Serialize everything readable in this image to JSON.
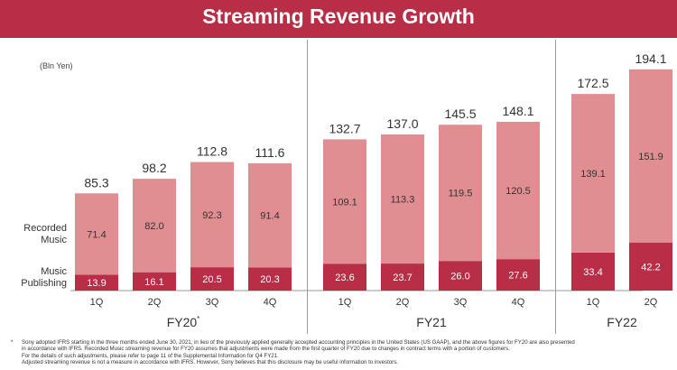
{
  "header": {
    "title": "Streaming Revenue Growth"
  },
  "chart_data": {
    "type": "bar",
    "stacked": true,
    "title": "Streaming Revenue Growth",
    "unit_label": "(Bln Yen)",
    "categories": [
      "1Q",
      "2Q",
      "3Q",
      "4Q",
      "1Q",
      "2Q",
      "3Q",
      "4Q",
      "1Q",
      "2Q"
    ],
    "groups": [
      {
        "label": "FY20",
        "superscript": "*",
        "count": 4
      },
      {
        "label": "FY21",
        "superscript": "",
        "count": 4
      },
      {
        "label": "FY22",
        "superscript": "",
        "count": 2
      }
    ],
    "series": [
      {
        "name": "Music Publishing",
        "color": "#b72e46",
        "values": [
          13.9,
          16.1,
          20.5,
          20.3,
          23.6,
          23.7,
          26.0,
          27.6,
          33.4,
          42.2
        ]
      },
      {
        "name": "Recorded Music",
        "color": "#e08e91",
        "values": [
          71.4,
          82.0,
          92.3,
          91.4,
          109.1,
          113.3,
          119.5,
          120.5,
          139.1,
          151.9
        ]
      }
    ],
    "totals": [
      85.3,
      98.2,
      112.8,
      111.6,
      132.7,
      137.0,
      145.5,
      148.1,
      172.5,
      194.1
    ],
    "series_labels": [
      {
        "series": "Music Publishing",
        "lines": [
          "Music",
          "Publishing"
        ]
      },
      {
        "series": "Recorded Music",
        "lines": [
          "Recorded",
          "Music"
        ]
      }
    ],
    "ylim": [
      0,
      200
    ]
  },
  "footnote": {
    "marker": "*",
    "lines": [
      "Sony adopted IFRS starting in the three months ended June 30, 2021, in lieu of the previously applied generally accepted accounting principles in the United States (US GAAP), and the above figures for FY20 are also presented",
      "in accordance with IFRS. Recorded Music streaming revenue for FY20 assumes that adjustments were made from the first quarter of FY20 due to changes in contract terms with a portion of customers.",
      "For the details of such adjustments, please refer to page 11 of the Supplemental Information for Q4 FY21.",
      "Adjusted streaming revenue is not a measure in accordance with IFRS. However, Sony believes that this disclosure may be useful information to investors."
    ]
  }
}
